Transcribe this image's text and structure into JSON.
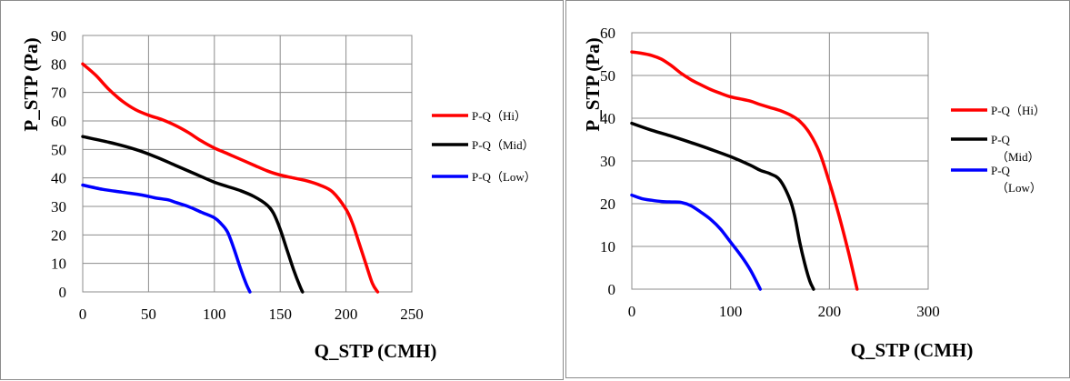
{
  "chart_data": [
    {
      "type": "line",
      "xlabel": "Q_STP (CMH)",
      "ylabel": "P_STP (Pa)",
      "xlim": [
        0,
        250
      ],
      "ylim": [
        0,
        90
      ],
      "xticks": [
        "0",
        "50",
        "100",
        "150",
        "200",
        "250"
      ],
      "yticks": [
        "0",
        "10",
        "20",
        "30",
        "40",
        "50",
        "60",
        "70",
        "80",
        "90"
      ],
      "grid": true,
      "legend_position": "right",
      "series": [
        {
          "name": "P-Q（Hi）",
          "color": "#ff0000",
          "x": [
            0,
            10,
            20,
            30,
            40,
            50,
            60,
            70,
            80,
            90,
            100,
            110,
            120,
            130,
            140,
            150,
            160,
            170,
            180,
            190,
            200,
            205,
            210,
            215,
            220,
            224
          ],
          "y": [
            80,
            76,
            71,
            67,
            64,
            62,
            60.5,
            58.5,
            56,
            53,
            50.5,
            48.5,
            46.5,
            44.5,
            42.5,
            41,
            40,
            39,
            37.5,
            35,
            29,
            24,
            17,
            10,
            3,
            0
          ]
        },
        {
          "name": "P-Q（Mid）",
          "color": "#000000",
          "x": [
            0,
            20,
            40,
            55,
            70,
            85,
            100,
            110,
            120,
            130,
            140,
            145,
            150,
            155,
            160,
            165,
            167
          ],
          "y": [
            54.5,
            52.5,
            50,
            47.5,
            44.5,
            41.5,
            38.5,
            37,
            35.5,
            33.5,
            30.5,
            27.5,
            22,
            15,
            8,
            2,
            0
          ]
        },
        {
          "name": "P-Q（Low）",
          "color": "#0000ff",
          "x": [
            0,
            15,
            30,
            45,
            55,
            65,
            70,
            80,
            90,
            100,
            105,
            110,
            115,
            120,
            124,
            127
          ],
          "y": [
            37.5,
            36,
            35,
            34,
            33,
            32.3,
            31.5,
            30,
            28,
            26,
            24,
            21,
            15,
            8,
            3,
            0
          ]
        }
      ]
    },
    {
      "type": "line",
      "xlabel": "Q_STP (CMH)",
      "ylabel": "P_STP (Pa)",
      "xlim": [
        0,
        300
      ],
      "ylim": [
        0,
        60
      ],
      "xticks": [
        "0",
        "100",
        "200",
        "300"
      ],
      "yticks": [
        "0",
        "10",
        "20",
        "30",
        "40",
        "50",
        "60"
      ],
      "grid": true,
      "legend_position": "right",
      "series": [
        {
          "name": "P-Q（Hi）",
          "color": "#ff0000",
          "x": [
            0,
            10,
            20,
            30,
            40,
            50,
            60,
            70,
            80,
            90,
            100,
            110,
            120,
            130,
            140,
            150,
            160,
            170,
            180,
            190,
            200,
            210,
            220,
            228
          ],
          "y": [
            55.5,
            55.2,
            54.7,
            53.8,
            52.3,
            50.5,
            49,
            47.8,
            46.7,
            45.8,
            45,
            44.5,
            44,
            43.2,
            42.5,
            41.8,
            40.8,
            39.3,
            36.5,
            32,
            25,
            17,
            8,
            0
          ]
        },
        {
          "name": "P-Q\n（Mid）",
          "color": "#000000",
          "x": [
            0,
            20,
            40,
            60,
            80,
            100,
            120,
            130,
            140,
            150,
            160,
            165,
            170,
            175,
            180,
            184
          ],
          "y": [
            38.8,
            37.2,
            35.8,
            34.3,
            32.7,
            31,
            29,
            27.8,
            27,
            25.5,
            21,
            17,
            11,
            6,
            2,
            0
          ]
        },
        {
          "name": "P-Q\n（Low）",
          "color": "#0000ff",
          "x": [
            0,
            10,
            20,
            30,
            40,
            50,
            60,
            70,
            80,
            90,
            100,
            110,
            120,
            130
          ],
          "y": [
            22,
            21.2,
            20.8,
            20.5,
            20.4,
            20.3,
            19.5,
            18,
            16.3,
            14,
            11,
            8,
            4.5,
            0
          ]
        }
      ]
    }
  ]
}
